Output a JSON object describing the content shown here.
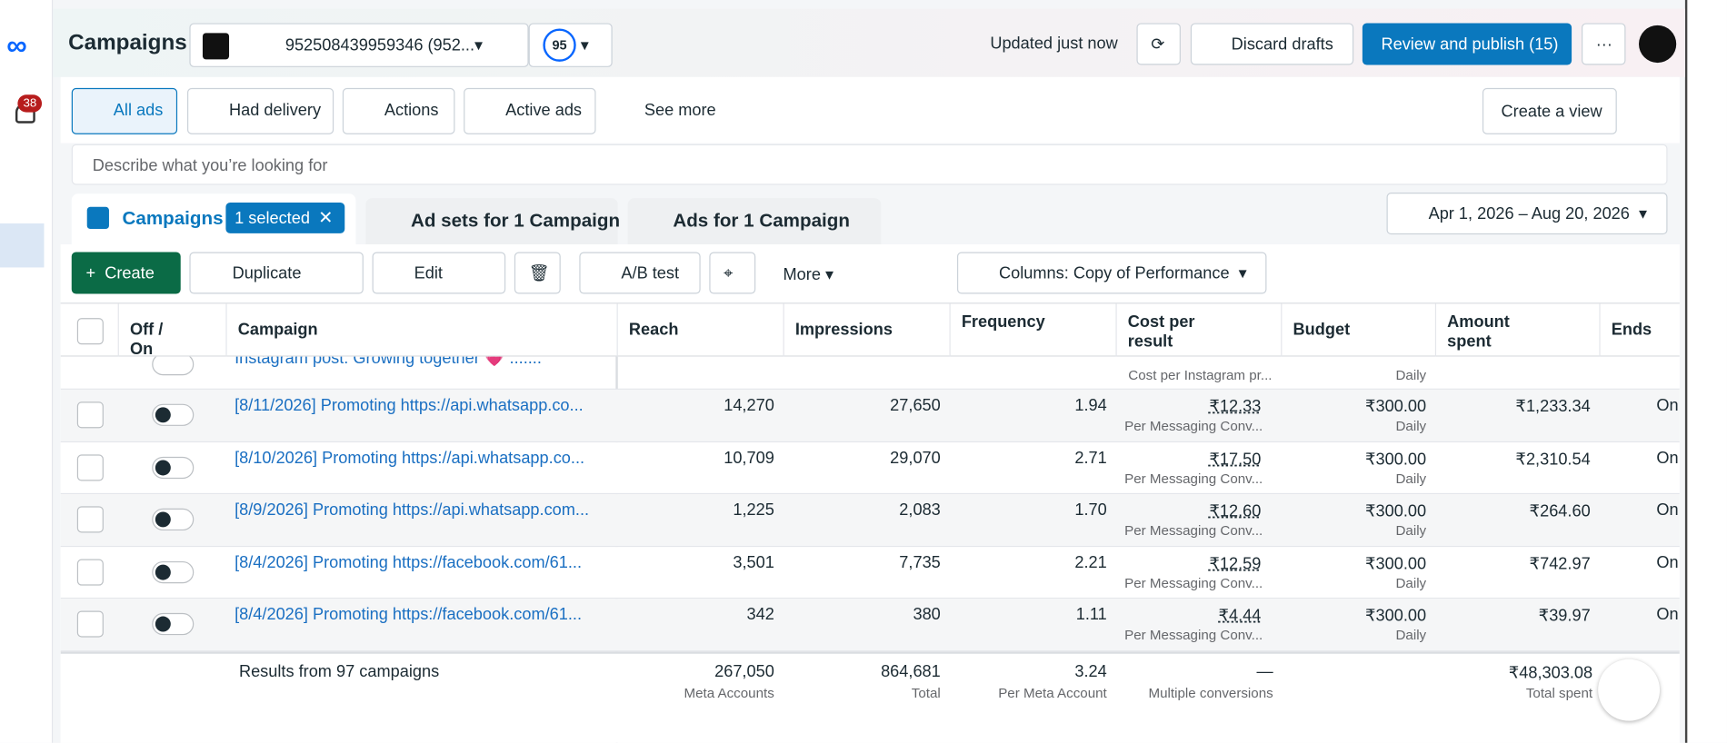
{
  "header": {
    "title": "Campaigns",
    "account": "952508439959346 (952...",
    "score": "95",
    "status": "Updated just now",
    "discard": "Discard drafts",
    "publish": "Review and publish (15)",
    "notifications": "38"
  },
  "filters": {
    "items": [
      "All ads",
      "Had delivery",
      "Actions",
      "Active ads"
    ],
    "see_more": "See more",
    "create_view": "Create a view"
  },
  "search": {
    "placeholder": "Describe what you’re looking for"
  },
  "tabs": {
    "campaigns": "Campaigns",
    "selected": "1 selected",
    "adsets": "Ad sets for 1 Campaign",
    "ads": "Ads for 1 Campaign",
    "date": "Apr 1, 2026 – Aug 20, 2026"
  },
  "toolbar": {
    "create": "Create",
    "duplicate": "Duplicate",
    "edit": "Edit",
    "ab": "A/B test",
    "more": "More",
    "columns": "Columns: Copy of Performance"
  },
  "table": {
    "columns": [
      "Off / On",
      "Campaign",
      "Reach",
      "Impressions",
      "Frequency",
      "Cost per result",
      "Budget",
      "Amount spent",
      "Ends"
    ],
    "partial_row": {
      "campaign": "Instagram post: Growing together 💗 .......",
      "cost_sub": "Cost per Instagram pr...",
      "budget_sub": "Daily"
    },
    "rows": [
      {
        "campaign": "[8/11/2026] Promoting https://api.whatsapp.co...",
        "reach": "14,270",
        "impressions": "27,650",
        "frequency": "1.94",
        "cost": "₹12.33",
        "cost_sub": "Per Messaging Conv...",
        "budget": "₹300.00",
        "budget_sub": "Daily",
        "spent": "₹1,233.34",
        "ends": "On"
      },
      {
        "campaign": "[8/10/2026] Promoting https://api.whatsapp.co...",
        "reach": "10,709",
        "impressions": "29,070",
        "frequency": "2.71",
        "cost": "₹17.50",
        "cost_sub": "Per Messaging Conv...",
        "budget": "₹300.00",
        "budget_sub": "Daily",
        "spent": "₹2,310.54",
        "ends": "On"
      },
      {
        "campaign": "[8/9/2026] Promoting https://api.whatsapp.com...",
        "reach": "1,225",
        "impressions": "2,083",
        "frequency": "1.70",
        "cost": "₹12.60",
        "cost_sub": "Per Messaging Conv...",
        "budget": "₹300.00",
        "budget_sub": "Daily",
        "spent": "₹264.60",
        "ends": "On"
      },
      {
        "campaign": "[8/4/2026] Promoting https://facebook.com/61...",
        "reach": "3,501",
        "impressions": "7,735",
        "frequency": "2.21",
        "cost": "₹12.59",
        "cost_sub": "Per Messaging Conv...",
        "budget": "₹300.00",
        "budget_sub": "Daily",
        "spent": "₹742.97",
        "ends": "On"
      },
      {
        "campaign": "[8/4/2026] Promoting https://facebook.com/61...",
        "reach": "342",
        "impressions": "380",
        "frequency": "1.11",
        "cost": "₹4.44",
        "cost_sub": "Per Messaging Conv...",
        "budget": "₹300.00",
        "budget_sub": "Daily",
        "spent": "₹39.97",
        "ends": "On"
      }
    ],
    "footer": {
      "label": "Results from 97 campaigns",
      "reach": "267,050",
      "reach_sub": "Meta Accounts",
      "impressions": "864,681",
      "impressions_sub": "Total",
      "frequency": "3.24",
      "frequency_sub": "Per Meta Account",
      "cost": "—",
      "cost_sub": "Multiple conversions",
      "spent": "₹48,303.08",
      "spent_sub": "Total spent"
    }
  }
}
